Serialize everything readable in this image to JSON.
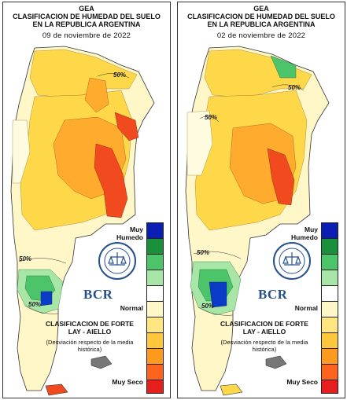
{
  "panels": [
    {
      "header": "GEA",
      "title_line1": "CLASIFICACION DE HUMEDAD DEL SUELO",
      "title_line2": "EN LA REPUBLICA ARGENTINA",
      "date": "09 de noviembre de 2022",
      "isolines": [
        "50%",
        "50%",
        "50%"
      ]
    },
    {
      "header": "GEA",
      "title_line1": "CLASIFICACION DE HUMEDAD DEL SUELO",
      "title_line2": "EN LA REPUBLICA ARGENTINA",
      "date": "02 de noviembre de 2022",
      "isolines": [
        "50%",
        "50%",
        "50%",
        "50%"
      ]
    }
  ],
  "legend": {
    "top_label": "Muy Humedo",
    "middle_label": "Normal",
    "bottom_label": "Muy Seco",
    "colors": [
      "#0a1eb4",
      "#1a8f3c",
      "#4cc46a",
      "#a8e6a8",
      "#ffffff",
      "#fff7c8",
      "#ffe680",
      "#ffc83c",
      "#ff9a1e",
      "#ff641e",
      "#e61e1e"
    ],
    "classification_title": "CLASIFICACION DE FORTE LAY - AIELLO",
    "note": "(Desviación respecto de la media histórica)"
  },
  "logo": {
    "brand": "BCR",
    "seal_text": "BOLSA DE COMERCIO DE ROSARIO"
  },
  "colors": {
    "normal": "#fffbe0",
    "dry": "#ffd84a",
    "drier": "#ffab2e",
    "very_dry": "#f04a1e",
    "humid": "#6ccf7a",
    "very_humid": "#0a3cc8"
  }
}
